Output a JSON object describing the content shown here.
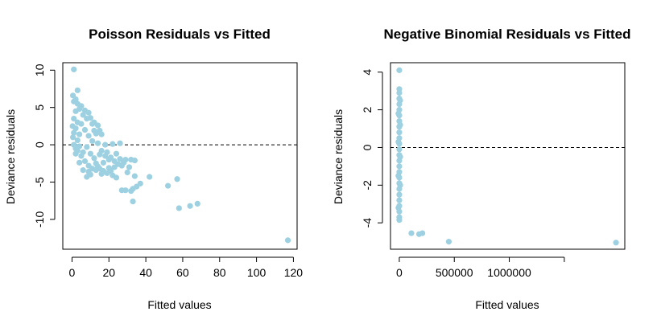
{
  "chart_data": [
    {
      "type": "scatter",
      "title": "Poisson Residuals vs Fitted",
      "xlabel": "Fitted values",
      "ylabel": "Deviance residuals",
      "xlim": [
        -5,
        122
      ],
      "ylim": [
        -14,
        11
      ],
      "xticks": [
        0,
        20,
        40,
        60,
        80,
        100,
        120
      ],
      "xtick_labels": [
        "0",
        "20",
        "40",
        "60",
        "80",
        "100",
        "120"
      ],
      "yticks": [
        -10,
        -5,
        0,
        5,
        10
      ],
      "ytick_labels": [
        "-10",
        "-5",
        "0",
        "5",
        "10"
      ],
      "reference_line_y": 0,
      "point_color": "#9dd0e0",
      "points": [
        [
          1,
          10.1
        ],
        [
          3,
          7.3
        ],
        [
          0.5,
          6.6
        ],
        [
          2,
          6.1
        ],
        [
          1,
          5.8
        ],
        [
          3,
          5.5
        ],
        [
          5,
          5.2
        ],
        [
          7,
          4.6
        ],
        [
          9,
          4.3
        ],
        [
          4,
          4.8
        ],
        [
          6,
          4.0
        ],
        [
          10,
          3.6
        ],
        [
          12,
          3.0
        ],
        [
          14,
          2.6
        ],
        [
          15,
          1.9
        ],
        [
          8,
          3.5
        ],
        [
          11,
          2.8
        ],
        [
          16,
          1.4
        ],
        [
          2,
          4.5
        ],
        [
          1,
          3.5
        ],
        [
          0.3,
          2.5
        ],
        [
          0.5,
          1.0
        ],
        [
          1,
          0.0
        ],
        [
          2,
          -0.5
        ],
        [
          3,
          -0.8
        ],
        [
          5,
          -1.5
        ],
        [
          7,
          -2.2
        ],
        [
          9,
          -2.8
        ],
        [
          11,
          -3.2
        ],
        [
          13,
          -3.4
        ],
        [
          15,
          -3.2
        ],
        [
          17,
          -3.5
        ],
        [
          19,
          -3.8
        ],
        [
          21,
          -3.5
        ],
        [
          23,
          -3.0
        ],
        [
          25,
          -2.6
        ],
        [
          27,
          -2.8
        ],
        [
          22,
          -4.1
        ],
        [
          24,
          -4.4
        ],
        [
          20,
          -2.0
        ],
        [
          18,
          -1.5
        ],
        [
          16,
          -0.8
        ],
        [
          14,
          0.2
        ],
        [
          12,
          -1.8
        ],
        [
          10,
          -4.0
        ],
        [
          8,
          -4.3
        ],
        [
          6,
          -3.4
        ],
        [
          4,
          -2.4
        ],
        [
          22,
          0.1
        ],
        [
          26,
          0.2
        ],
        [
          29,
          -2.0
        ],
        [
          31,
          -3.0
        ],
        [
          27,
          -6.1
        ],
        [
          29,
          -6.1
        ],
        [
          32,
          -6.2
        ],
        [
          33,
          -5.9
        ],
        [
          33,
          -7.6
        ],
        [
          34,
          -4.2
        ],
        [
          35,
          -5.6
        ],
        [
          37,
          -5.2
        ],
        [
          42,
          -4.3
        ],
        [
          52,
          -5.5
        ],
        [
          57,
          -4.6
        ],
        [
          58,
          -8.5
        ],
        [
          64,
          -8.2
        ],
        [
          68,
          -7.9
        ],
        [
          117,
          -12.8
        ],
        [
          32,
          -2.0
        ],
        [
          34,
          -2.1
        ],
        [
          30,
          -3.7
        ],
        [
          13,
          1.5
        ],
        [
          11,
          0.5
        ],
        [
          9,
          1.2
        ],
        [
          7,
          2.0
        ],
        [
          5,
          2.8
        ],
        [
          3,
          3.0
        ],
        [
          6,
          -1.0
        ],
        [
          8,
          -0.3
        ],
        [
          10,
          -1.2
        ],
        [
          13,
          -2.5
        ],
        [
          15,
          -1.3
        ],
        [
          17,
          -2.4
        ],
        [
          19,
          -1.0
        ],
        [
          21,
          -1.7
        ],
        [
          18,
          0.0
        ],
        [
          24,
          -1.2
        ],
        [
          26,
          -1.9
        ],
        [
          28,
          -2.4
        ],
        [
          12,
          1.9
        ],
        [
          4,
          1.4
        ],
        [
          2,
          2.2
        ],
        [
          1,
          1.6
        ],
        [
          2,
          -1.2
        ],
        [
          3,
          0.6
        ],
        [
          4,
          -0.2
        ],
        [
          9,
          -3.6
        ],
        [
          14,
          -2.9
        ],
        [
          16,
          -3.9
        ],
        [
          20,
          -3.1
        ],
        [
          23,
          -2.2
        ]
      ]
    },
    {
      "type": "scatter",
      "title": "Negative Binomial Residuals vs Fitted",
      "xlabel": "Fitted values",
      "ylabel": "Deviance residuals",
      "xlim": [
        -80000,
        2050000
      ],
      "ylim": [
        -5.4,
        4.5
      ],
      "xticks": [
        0,
        500000,
        1000000,
        1500000
      ],
      "xtick_labels": [
        "0",
        "500000",
        "1000000",
        ""
      ],
      "yticks": [
        -4,
        -2,
        0,
        2,
        4
      ],
      "ytick_labels": [
        "-4",
        "-2",
        "0",
        "2",
        "4"
      ],
      "reference_line_y": 0,
      "point_color": "#9dd0e0",
      "points": [
        [
          0,
          4.1
        ],
        [
          0,
          3.1
        ],
        [
          0,
          2.9
        ],
        [
          0,
          2.6
        ],
        [
          0,
          2.3
        ],
        [
          0,
          2.0
        ],
        [
          0,
          1.7
        ],
        [
          0,
          1.4
        ],
        [
          0,
          1.1
        ],
        [
          0,
          0.8
        ],
        [
          0,
          0.5
        ],
        [
          0,
          0.2
        ],
        [
          0,
          -0.1
        ],
        [
          0,
          -0.4
        ],
        [
          0,
          -0.7
        ],
        [
          0,
          -1.0
        ],
        [
          0,
          -1.3
        ],
        [
          0,
          -1.6
        ],
        [
          0,
          -1.9
        ],
        [
          0,
          -2.2
        ],
        [
          0,
          -2.5
        ],
        [
          0,
          -2.8
        ],
        [
          0,
          -3.1
        ],
        [
          0,
          -3.4
        ],
        [
          0,
          -3.7
        ],
        [
          0,
          -3.85
        ],
        [
          8000,
          2.5
        ],
        [
          8000,
          1.2
        ],
        [
          8000,
          -0.5
        ],
        [
          8000,
          -2.0
        ],
        [
          -8000,
          1.8
        ],
        [
          -8000,
          0.3
        ],
        [
          -8000,
          -1.5
        ],
        [
          -8000,
          -3.2
        ],
        [
          110000,
          -4.55
        ],
        [
          180000,
          -4.6
        ],
        [
          210000,
          -4.55
        ],
        [
          450000,
          -5.0
        ],
        [
          1970000,
          -5.05
        ]
      ]
    }
  ]
}
